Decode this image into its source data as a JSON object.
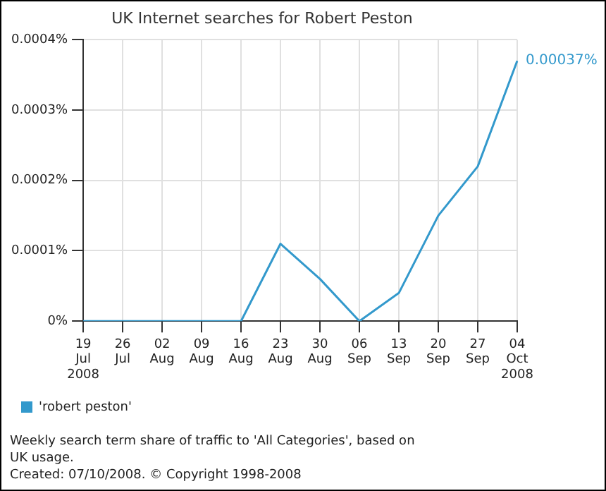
{
  "chart_data": {
    "type": "line",
    "title": "UK Internet searches for Robert Peston",
    "categories": [
      "19\nJul\n2008",
      "26\nJul",
      "02\nAug",
      "09\nAug",
      "16\nAug",
      "23\nAug",
      "30\nAug",
      "06\nSep",
      "13\nSep",
      "20\nSep",
      "27\nSep",
      "04\nOct\n2008"
    ],
    "series": [
      {
        "name": "'robert peston'",
        "color": "#3399cc",
        "values": [
          0,
          0,
          0,
          0,
          0,
          0.00011,
          6e-05,
          0,
          4e-05,
          0.00015,
          0.00022,
          0.00037
        ]
      }
    ],
    "ylim": [
      0,
      0.0004
    ],
    "yticks": [
      {
        "value": 0,
        "label": "0%"
      },
      {
        "value": 0.0001,
        "label": "0.0001%"
      },
      {
        "value": 0.0002,
        "label": "0.0002%"
      },
      {
        "value": 0.0003,
        "label": "0.0003%"
      },
      {
        "value": 0.0004,
        "label": "0.0004%"
      }
    ],
    "grid": true,
    "legend": "bottom left",
    "marker": "none",
    "line_style": "solid",
    "annotations": [
      {
        "text": "0.00037%",
        "x": "04\nOct\n2008",
        "y": 0.00037
      },
      "Weekly search term share of traffic to 'All Categories', based on UK usage.",
      "Created: 07/10/2008. © Copyright 1998-2008"
    ]
  }
}
